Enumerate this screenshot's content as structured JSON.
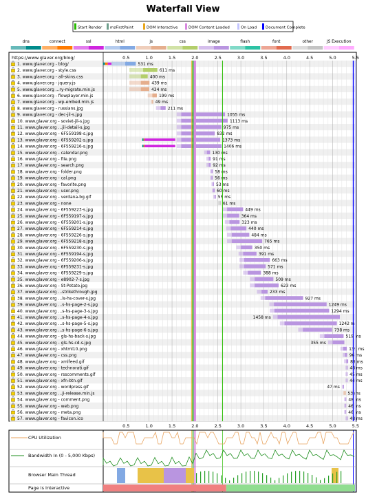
{
  "title": "Waterfall View",
  "markers": [
    {
      "label": "Start Render",
      "color": "#28bc00"
    },
    {
      "label": "msFirstPaint",
      "color": "#6f9f8d"
    },
    {
      "label": "DOM Interactive",
      "color": "#e8a61c"
    },
    {
      "label": "DOM Content Loaded",
      "color": "#d888df"
    },
    {
      "label": "On Load",
      "color": "#c3c5ff"
    },
    {
      "label": "Document Complete",
      "color": "#0000ff"
    }
  ],
  "resource_types": [
    {
      "label": "dns",
      "color": "#008b8b"
    },
    {
      "label": "connect",
      "color": "#ff7b00"
    },
    {
      "label": "ssl",
      "color": "#cf25df"
    },
    {
      "label": "html",
      "color": "#82a9e3"
    },
    {
      "label": "js",
      "color": "#e5ae8d"
    },
    {
      "label": "css",
      "color": "#b3ce6b"
    },
    {
      "label": "image",
      "color": "#b995e0"
    },
    {
      "label": "flash",
      "color": "#2dc2a4"
    },
    {
      "label": "font",
      "color": "#e16a4e"
    },
    {
      "label": "other",
      "color": "#c4c4c4"
    },
    {
      "label": "JS Execution",
      "color": "#ffaaff"
    }
  ],
  "url_header": "https://www.glaver.org/blog/",
  "ticks": [
    "0.5",
    "1.0",
    "1.5",
    "2.0",
    "2.5",
    "3.0",
    "3.5",
    "4.0",
    "4.5",
    "5.0",
    "5.5"
  ],
  "rows": [
    {
      "label": "1. www.glaver.org - blog/",
      "ms": "531 ms",
      "type": "html",
      "start": 0.0,
      "dur": 0.531,
      "ttfb": 0.3,
      "dns": 0.04,
      "conn": 0.06,
      "ssl": 0.08
    },
    {
      "label": "2. www.glaver.org - style.css",
      "ms": "611 ms",
      "type": "css",
      "start": 0.57,
      "dur": 0.611,
      "ttfb": 0.3
    },
    {
      "label": "3. www.glaver.org - all-skins.css",
      "ms": "400 ms",
      "type": "css",
      "start": 0.57,
      "dur": 0.4,
      "ttfb": 0.25
    },
    {
      "label": "4. www.glaver.org - jquery.js",
      "ms": "439 ms",
      "type": "js",
      "start": 0.57,
      "dur": 0.439,
      "ttfb": 0.25
    },
    {
      "label": "5. www.glaver.org ...ry-migrate.min.js",
      "ms": "434 ms",
      "type": "js",
      "start": 0.57,
      "dur": 0.434,
      "ttfb": 0.25
    },
    {
      "label": "6. www.glaver.org - flowplayer.min.js",
      "ms": "199 ms",
      "type": "js",
      "start": 0.97,
      "dur": 0.199,
      "ttfb": 0.1
    },
    {
      "label": "7. www.glaver.org - wp-embed.min.js",
      "ms": "49 ms",
      "type": "js",
      "start": 1.04,
      "dur": 0.049,
      "ttfb": 0.03
    },
    {
      "label": "8. www.glaver.org - russians.jpg",
      "ms": "211 ms",
      "type": "image",
      "start": 1.15,
      "dur": 0.211,
      "ttfb": 0.1
    },
    {
      "label": "9. www.glaver.org - dec-jil-s.jpg",
      "ms": "1055 ms",
      "type": "image",
      "start": 1.6,
      "dur": 1.055,
      "ttfb": 0.1
    },
    {
      "label": "10. www.glaver.org - soviet-jil-s.jpg",
      "ms": "1113 ms",
      "type": "image",
      "start": 1.6,
      "dur": 1.113,
      "ttfb": 0.1
    },
    {
      "label": "11. www.glaver.org ...jil-detail-s.jpg",
      "ms": "975 ms",
      "type": "image",
      "start": 1.6,
      "dur": 0.975,
      "ttfb": 0.1
    },
    {
      "label": "12. www.glaver.org - 6F559198-s.jpg",
      "ms": "832 ms",
      "type": "image",
      "start": 1.6,
      "dur": 0.832,
      "ttfb": 0.1
    },
    {
      "label": "13. www.glaver.org - 6F559202-s.jpg",
      "ms": "1373 ms",
      "type": "image",
      "start": 1.6,
      "dur": 0.95,
      "ttfb": 0.1,
      "dns": 0.03,
      "conn": 0.02,
      "ssl": 0.67,
      "sslstart": 0.6
    },
    {
      "label": "14. www.glaver.org - 6F559216-s.jpg",
      "ms": "1406 ms",
      "type": "image",
      "start": 1.6,
      "dur": 0.98,
      "ttfb": 0.1,
      "dns": 0.03,
      "conn": 0.02,
      "ssl": 0.67,
      "sslstart": 0.6
    },
    {
      "label": "15. www.glaver.org - calendar.png",
      "ms": "130 ms",
      "type": "image",
      "start": 2.2,
      "dur": 0.13,
      "ttfb": 0.06
    },
    {
      "label": "16. www.glaver.org - file.png",
      "ms": "91 ms",
      "type": "image",
      "start": 2.25,
      "dur": 0.091,
      "ttfb": 0.05
    },
    {
      "label": "17. www.glaver.org - search.png",
      "ms": "92 ms",
      "type": "image",
      "start": 2.25,
      "dur": 0.092,
      "ttfb": 0.05
    },
    {
      "label": "18. www.glaver.org - folder.png",
      "ms": "58 ms",
      "type": "image",
      "start": 2.33,
      "dur": 0.058,
      "ttfb": 0.03
    },
    {
      "label": "19. www.glaver.org - cal.png",
      "ms": "56 ms",
      "type": "image",
      "start": 2.33,
      "dur": 0.056,
      "ttfb": 0.03
    },
    {
      "label": "20. www.glaver.org - favorite.png",
      "ms": "53 ms",
      "type": "image",
      "start": 2.36,
      "dur": 0.053,
      "ttfb": 0.03
    },
    {
      "label": "21. www.glaver.org - user.png",
      "ms": "60 ms",
      "type": "image",
      "start": 2.37,
      "dur": 0.06,
      "ttfb": 0.03
    },
    {
      "label": "22. www.glaver.org - verdana-bg.gif",
      "ms": "55 ms",
      "type": "image",
      "start": 2.4,
      "dur": 0.055,
      "ttfb": 0.03
    },
    {
      "label": "23. www.glaver.org - none",
      "ms": "61 ms",
      "type": "other",
      "start": 2.5,
      "dur": 0.061,
      "ttfb": 0.04
    },
    {
      "label": "24. www.glaver.org - 6F559223-s.jpg",
      "ms": "449 ms",
      "type": "image",
      "start": 2.6,
      "dur": 0.449,
      "ttfb": 0.1
    },
    {
      "label": "25. www.glaver.org - 6F559197-s.jpg",
      "ms": "364 ms",
      "type": "image",
      "start": 2.6,
      "dur": 0.364,
      "ttfb": 0.1
    },
    {
      "label": "26. www.glaver.org - 6F559201-s.jpg",
      "ms": "323 ms",
      "type": "image",
      "start": 2.65,
      "dur": 0.323,
      "ttfb": 0.1
    },
    {
      "label": "27. www.glaver.org - 6F559214-s.jpg",
      "ms": "440 ms",
      "type": "image",
      "start": 2.68,
      "dur": 0.44,
      "ttfb": 0.1
    },
    {
      "label": "28. www.glaver.org - 6F559226-s.jpg",
      "ms": "484 ms",
      "type": "image",
      "start": 2.7,
      "dur": 0.484,
      "ttfb": 0.1
    },
    {
      "label": "29. www.glaver.org - 6F559218-s.jpg",
      "ms": "765 ms",
      "type": "image",
      "start": 2.7,
      "dur": 0.765,
      "ttfb": 0.1
    },
    {
      "label": "30. www.glaver.org - 6F559230-s.jpg",
      "ms": "350 ms",
      "type": "image",
      "start": 2.9,
      "dur": 0.35,
      "ttfb": 0.1
    },
    {
      "label": "31. www.glaver.org - 6F559194-s.jpg",
      "ms": "391 ms",
      "type": "image",
      "start": 2.95,
      "dur": 0.391,
      "ttfb": 0.1
    },
    {
      "label": "32. www.glaver.org - 6F559206-s.jpg",
      "ms": "663 ms",
      "type": "image",
      "start": 2.97,
      "dur": 0.663,
      "ttfb": 0.1
    },
    {
      "label": "33. www.glaver.org - 6F559231-s.jpg",
      "ms": "571 ms",
      "type": "image",
      "start": 2.97,
      "dur": 0.571,
      "ttfb": 0.1
    },
    {
      "label": "34. www.glaver.org - 6F559229-s.jpg",
      "ms": "388 ms",
      "type": "image",
      "start": 3.05,
      "dur": 0.388,
      "ttfb": 0.1
    },
    {
      "label": "35. www.glaver.org - e8902-7-s.jpg",
      "ms": "509 ms",
      "type": "image",
      "start": 3.2,
      "dur": 0.509,
      "ttfb": 0.1
    },
    {
      "label": "36. www.glaver.org - St-Potato.jpg",
      "ms": "623 ms",
      "type": "image",
      "start": 3.2,
      "dur": 0.623,
      "ttfb": 0.1
    },
    {
      "label": "37. www.glaver.org ...strikethrough.jpg",
      "ms": "233 ms",
      "type": "image",
      "start": 3.35,
      "dur": 0.233,
      "ttfb": 0.1
    },
    {
      "label": "38. www.glaver.org ...ls-hs-cover-s.jpg",
      "ms": "927 ms",
      "type": "image",
      "start": 3.43,
      "dur": 0.927,
      "ttfb": 0.1
    },
    {
      "label": "39. www.glaver.org ...s-hs-page-2-s.jpg",
      "ms": "1249 ms",
      "type": "image",
      "start": 3.62,
      "dur": 1.249,
      "ttfb": 0.1
    },
    {
      "label": "40. www.glaver.org ...s-hs-page-3-s.jpg",
      "ms": "1294 ms",
      "type": "image",
      "start": 3.63,
      "dur": 1.294,
      "ttfb": 0.1
    },
    {
      "label": "41. www.glaver.org ...s-hs-page-4-s.jpg",
      "ms": "1458 ms",
      "type": "image",
      "start": 3.7,
      "dur": 1.458,
      "ttfb": 0.1,
      "before": true
    },
    {
      "label": "42. www.glaver.org ...s-hs-page-5-s.jpg",
      "ms": "1242 ms",
      "type": "image",
      "start": 3.85,
      "dur": 1.242,
      "ttfb": 0.1
    },
    {
      "label": "43. www.glaver.org ...s-hs-page-6-s.jpg",
      "ms": "738 ms",
      "type": "image",
      "start": 4.25,
      "dur": 0.738,
      "ttfb": 0.1
    },
    {
      "label": "44. www.glaver.org - gls-hs-back-s.jpg",
      "ms": "519 ms",
      "type": "image",
      "start": 4.72,
      "dur": 0.519,
      "ttfb": 0.1
    },
    {
      "label": "45. www.glaver.org - gls-hs-cd-s.jpg",
      "ms": "355 ms",
      "type": "image",
      "start": 4.9,
      "dur": 0.355,
      "ttfb": 0.1,
      "before": true
    },
    {
      "label": "46. www.glaver.org - xhtml10.png",
      "ms": "139 ms",
      "type": "image",
      "start": 5.17,
      "dur": 0.139,
      "ttfb": 0.06
    },
    {
      "label": "47. www.glaver.org - css.png",
      "ms": "96 ms",
      "type": "image",
      "start": 5.22,
      "dur": 0.096,
      "ttfb": 0.05
    },
    {
      "label": "48. www.glaver.org - xmlfeed.gif",
      "ms": "89 ms",
      "type": "image",
      "start": 5.25,
      "dur": 0.089,
      "ttfb": 0.05
    },
    {
      "label": "49. www.glaver.org - technorati.gif",
      "ms": "48 ms",
      "type": "image",
      "start": 5.28,
      "dur": 0.048,
      "ttfb": 0.03
    },
    {
      "label": "50. www.glaver.org - rsscomments.gif",
      "ms": "45 ms",
      "type": "image",
      "start": 5.28,
      "dur": 0.045,
      "ttfb": 0.03
    },
    {
      "label": "51. www.glaver.org - xfn-btn.gif",
      "ms": "44 ms",
      "type": "image",
      "start": 5.28,
      "dur": 0.044,
      "ttfb": 0.03
    },
    {
      "label": "52. www.glaver.org - wordpress.gif",
      "ms": "47 ms",
      "type": "image",
      "start": 5.2,
      "dur": 0.047,
      "ttfb": 0.03,
      "before": true
    },
    {
      "label": "53. www.glaver.org ...ji-release.min.js",
      "ms": "53 ms",
      "type": "js",
      "start": 5.23,
      "dur": 0.053,
      "ttfb": 0.03
    },
    {
      "label": "54. www.glaver.org - comment.png",
      "ms": "48 ms",
      "type": "image",
      "start": 5.25,
      "dur": 0.048,
      "ttfb": 0.03
    },
    {
      "label": "55. www.glaver.org - web.png",
      "ms": "46 ms",
      "type": "image",
      "start": 5.25,
      "dur": 0.046,
      "ttfb": 0.03
    },
    {
      "label": "56. www.glaver.org - meta.png",
      "ms": "46 ms",
      "type": "image",
      "start": 5.25,
      "dur": 0.046,
      "ttfb": 0.03
    },
    {
      "label": "57. www.glaver.org - favicon.ico",
      "ms": "48 ms",
      "type": "image",
      "start": 5.28,
      "dur": 0.048,
      "ttfb": 0.03
    }
  ],
  "events": {
    "start_render": 1.95,
    "first_paint": 1.97,
    "dom_interactive": 1.93,
    "dom_content_loaded": 2.0,
    "on_load": 5.5,
    "document_complete": 5.45
  },
  "graphs": {
    "cpu_label": "CPU Utilization",
    "bandwidth_label": "Bandwidth In (0 - 5,000 Kbps)",
    "main_thread_label": "Browser Main Thread",
    "interactive_label": "Page is Interactive"
  }
}
